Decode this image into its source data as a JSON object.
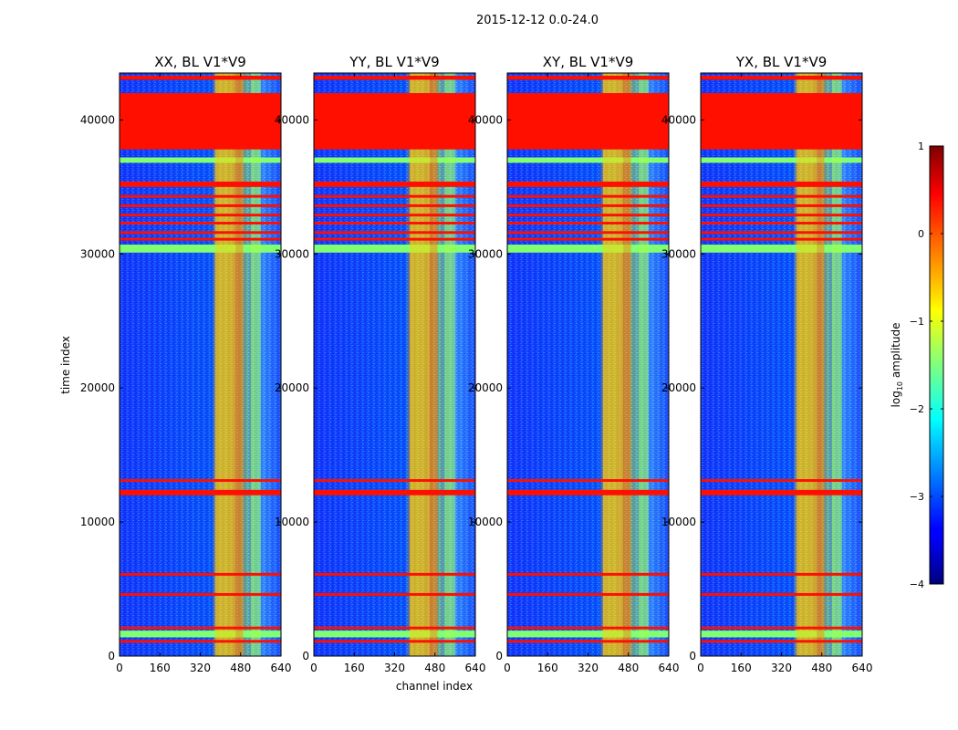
{
  "figure": {
    "suptitle": "2015-12-12 0.0-24.0",
    "xlabel": "channel index",
    "ylabel": "time index"
  },
  "chart_data": {
    "type": "heatmap",
    "title": "2015-12-12 0.0-24.0",
    "xlabel": "channel index",
    "ylabel": "time index",
    "xlim": [
      0,
      640
    ],
    "ylim": [
      0,
      43500
    ],
    "x_ticks": [
      0,
      160,
      320,
      480,
      640
    ],
    "x_tick_labels": [
      "0",
      "160",
      "320",
      "480",
      "640"
    ],
    "y_ticks": [
      0,
      10000,
      20000,
      30000,
      40000
    ],
    "y_tick_labels": [
      "0",
      "10000",
      "20000",
      "30000",
      "40000"
    ],
    "panels": [
      {
        "title": "XX, BL V1*V9"
      },
      {
        "title": "YY, BL V1*V9"
      },
      {
        "title": "XY, BL V1*V9"
      },
      {
        "title": "YX, BL V1*V9"
      }
    ],
    "colorbar": {
      "label": "log10 amplitude",
      "label_main": "log",
      "label_sub": "10",
      "label_rest": " amplitude",
      "range": [
        -4,
        1
      ],
      "ticks": [
        1,
        0,
        -1,
        -2,
        -3,
        -4
      ],
      "tick_labels": [
        "1",
        "0",
        "−1",
        "−2",
        "−3",
        "−4"
      ],
      "colormap": "jet"
    },
    "flagged_time_ranges": [
      [
        37800,
        42000
      ],
      [
        43000,
        43300
      ],
      [
        35000,
        35400
      ],
      [
        34200,
        34400
      ],
      [
        33500,
        33700
      ],
      [
        32800,
        33000
      ],
      [
        32200,
        32400
      ],
      [
        31500,
        31700
      ],
      [
        31000,
        31200
      ],
      [
        12000,
        12400
      ],
      [
        13000,
        13200
      ],
      [
        6000,
        6200
      ],
      [
        4500,
        4700
      ],
      [
        2000,
        2200
      ],
      [
        1000,
        1200
      ]
    ],
    "flagged_level": 0.3,
    "bright_time_ranges": [
      [
        30100,
        30700
      ],
      [
        36800,
        37200
      ],
      [
        1400,
        1900
      ]
    ],
    "bright_channel_ranges": [
      [
        380,
        460
      ],
      [
        460,
        490
      ],
      [
        520,
        560
      ]
    ],
    "colors": {
      "flag": "#ff6a00",
      "bright_band": "#80ff70"
    }
  }
}
